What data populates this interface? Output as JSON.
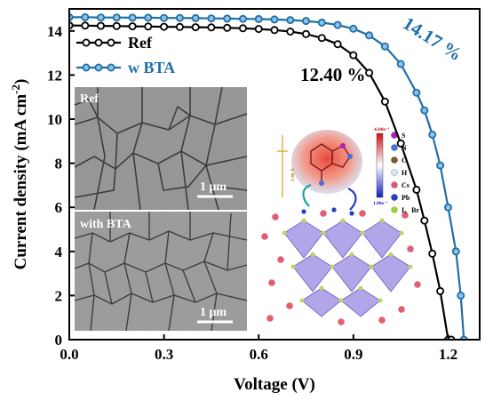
{
  "chart_data": {
    "type": "line",
    "xlabel": "Voltage (V)",
    "ylabel": "Current density (mA cm",
    "ylabel_sup": "-2",
    "ylabel_close": ")",
    "xlim": [
      0.0,
      1.3
    ],
    "ylim": [
      0,
      15
    ],
    "xticks": [
      "0.0",
      "0.3",
      "0.6",
      "0.9",
      "1.2"
    ],
    "xtick_values": [
      0.0,
      0.3,
      0.6,
      0.9,
      1.2
    ],
    "yticks": [
      "0",
      "2",
      "4",
      "6",
      "8",
      "10",
      "12",
      "14"
    ],
    "ytick_values": [
      0,
      2,
      4,
      6,
      8,
      10,
      12,
      14
    ],
    "legend_position": "top-left",
    "series": [
      {
        "name": "Ref",
        "color": "#000000",
        "marker_fill": "#ffffff",
        "efficiency_label": "12.40 %",
        "x": [
          0.0,
          0.05,
          0.1,
          0.15,
          0.2,
          0.25,
          0.3,
          0.35,
          0.4,
          0.45,
          0.5,
          0.55,
          0.6,
          0.65,
          0.7,
          0.75,
          0.8,
          0.85,
          0.9,
          0.95,
          1.0,
          1.05,
          1.1,
          1.125,
          1.15,
          1.175,
          1.2,
          1.21
        ],
        "y": [
          14.25,
          14.24,
          14.23,
          14.22,
          14.21,
          14.2,
          14.19,
          14.18,
          14.17,
          14.16,
          14.14,
          14.12,
          14.09,
          14.04,
          13.97,
          13.86,
          13.68,
          13.4,
          12.9,
          12.1,
          10.8,
          8.9,
          6.8,
          5.4,
          3.9,
          2.2,
          0.0,
          0.0
        ]
      },
      {
        "name": "w BTA",
        "color": "#1f6fa8",
        "marker_fill": "#8fc3e6",
        "efficiency_label": "14.17 %",
        "x": [
          0.0,
          0.05,
          0.1,
          0.15,
          0.2,
          0.25,
          0.3,
          0.35,
          0.4,
          0.45,
          0.5,
          0.55,
          0.6,
          0.65,
          0.7,
          0.75,
          0.8,
          0.85,
          0.9,
          0.95,
          1.0,
          1.05,
          1.1,
          1.125,
          1.15,
          1.175,
          1.2,
          1.225,
          1.24,
          1.25
        ],
        "y": [
          14.62,
          14.62,
          14.61,
          14.61,
          14.6,
          14.6,
          14.59,
          14.59,
          14.58,
          14.57,
          14.56,
          14.55,
          14.54,
          14.52,
          14.49,
          14.45,
          14.38,
          14.27,
          14.1,
          13.8,
          13.3,
          12.5,
          11.2,
          10.4,
          9.3,
          7.9,
          6.0,
          4.0,
          2.0,
          0.0
        ]
      }
    ]
  },
  "insets": {
    "sem_top_label": "Ref",
    "sem_bottom_label": "with BTA",
    "scale_bar_top": "1 μm",
    "scale_bar_bottom": "1 μm",
    "esp_max": "-6.00e⁻¹",
    "esp_min": "1.00e⁻¹",
    "binding_distance": "2.46 Å",
    "element_key": [
      {
        "symbol": "S",
        "color": "#b020c0"
      },
      {
        "symbol": "N",
        "color": "#4a70d0"
      },
      {
        "symbol": "C",
        "color": "#7a5a2a"
      },
      {
        "symbol": "H",
        "color": "#d8e4ee"
      },
      {
        "symbol": "Cs",
        "color": "#d65a6a"
      },
      {
        "symbol": "Pb",
        "color": "#2440c0"
      },
      {
        "symbol": "I、Br",
        "color": "#9ad040"
      }
    ]
  }
}
